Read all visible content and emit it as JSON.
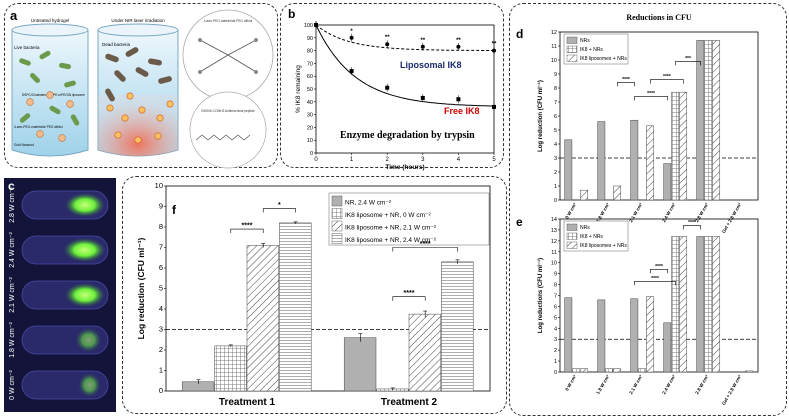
{
  "panel_a": {
    "letter": "a",
    "left_title": "Untreated hydrogel",
    "right_title": "Under NIR laser irradiation",
    "live_label": "Live bacteria",
    "dead_label": "Dead bacteria",
    "liposome_label": "DSPC/Cholesterol/DSPE-mPEG2k liposome",
    "nanorod_label": "Gold Nanorod",
    "peg_label": "4-arm-PEG-maleimide PEG dithiol",
    "peptide_label": "IIIKKIIK-CONH2 Antimicrobial peptide"
  },
  "panel_c": {
    "letter": "c",
    "tube_labels": [
      "2.8 W cm⁻²",
      "2.4 W cm⁻²",
      "2.1 W cm⁻²",
      "1.8 W cm⁻²",
      "0 W cm⁻²"
    ]
  },
  "colors": {
    "liposomal": "#1a2a6c",
    "free": "#cc0000",
    "bar_gray": "#b0b0b0",
    "fluor": "#7fff3a"
  },
  "chart_data": [
    {
      "id": "b",
      "type": "line",
      "letter": "b",
      "xlabel": "Time (hours)",
      "ylabel": "% IK8 remaining",
      "annotation": "Enzyme degradation by trypsin",
      "xlim": [
        0,
        5
      ],
      "ylim": [
        0,
        100
      ],
      "xticks": [
        0,
        1,
        2,
        3,
        4,
        5
      ],
      "yticks": [
        0,
        10,
        20,
        30,
        40,
        50,
        60,
        70,
        80,
        90,
        100
      ],
      "series": [
        {
          "name": "Liposomal IK8",
          "x": [
            0,
            1,
            2,
            3,
            4,
            5
          ],
          "y": [
            100,
            90,
            85,
            83,
            83,
            80
          ]
        },
        {
          "name": "Free IK8",
          "x": [
            0,
            1,
            2,
            3,
            4,
            5
          ],
          "y": [
            100,
            64,
            51,
            43,
            42,
            36
          ]
        }
      ],
      "significance": [
        {
          "x": 1,
          "label": "*"
        },
        {
          "x": 2,
          "label": "**"
        },
        {
          "x": 3,
          "label": "**"
        },
        {
          "x": 4,
          "label": "**"
        },
        {
          "x": 5,
          "label": "**"
        }
      ]
    },
    {
      "id": "d",
      "type": "bar",
      "letter": "d",
      "title": "Reductions in CFU",
      "ylabel": "Log reduction (CFU ml⁻¹)",
      "ylim": [
        0,
        12
      ],
      "yticks": [
        0,
        1,
        2,
        3,
        4,
        5,
        6,
        7,
        8,
        9,
        10,
        11,
        12
      ],
      "categories": [
        "0 W cm²",
        "1.8 W cm²",
        "2.1 W cm²",
        "2.4 W cm²",
        "2.8 W cm²",
        "Gel + 2.8 W cm²"
      ],
      "series": [
        {
          "name": "NRs",
          "values": [
            4.3,
            5.6,
            5.7,
            2.6,
            11.4,
            0
          ]
        },
        {
          "name": "IK8 + NRs",
          "values": [
            0,
            0,
            0,
            7.7,
            11.4,
            0
          ]
        },
        {
          "name": "IK8 liposomes + NRs",
          "values": [
            0.7,
            1.0,
            5.3,
            7.7,
            11.4,
            0
          ]
        }
      ],
      "threshold": 3,
      "significance": [
        "****",
        "****",
        "****",
        "***"
      ]
    },
    {
      "id": "e",
      "type": "bar",
      "letter": "e",
      "ylabel": "Log reductions (CFU ml⁻¹)",
      "ylim": [
        0,
        14
      ],
      "yticks": [
        0,
        1,
        2,
        3,
        4,
        5,
        6,
        7,
        8,
        9,
        10,
        11,
        12,
        13,
        14
      ],
      "categories": [
        "0 W cm²",
        "1.8 W cm²",
        "2.1 W cm²",
        "2.4 W cm²",
        "2.8 W cm²",
        "Gel + 2.8 W cm²"
      ],
      "series": [
        {
          "name": "NRs",
          "values": [
            6.8,
            6.6,
            6.7,
            4.5,
            12.4,
            0
          ]
        },
        {
          "name": "IK8 + NRs",
          "values": [
            0.3,
            0.3,
            0.3,
            12.4,
            12.4,
            0
          ]
        },
        {
          "name": "IK8 liposomes + NRs",
          "values": [
            0.3,
            0.3,
            6.9,
            12.4,
            12.4,
            0.1
          ]
        }
      ],
      "threshold": 3,
      "significance": [
        "****",
        "****",
        "****"
      ]
    },
    {
      "id": "f",
      "type": "bar",
      "letter": "f",
      "ylabel": "Log reduction (CFU ml⁻¹)",
      "ylim": [
        0,
        10
      ],
      "yticks": [
        0,
        1,
        2,
        3,
        4,
        5,
        6,
        7,
        8,
        9,
        10
      ],
      "categories": [
        "Treatment 1",
        "Treatment 2"
      ],
      "series": [
        {
          "name": "NR, 2.4 W cm⁻²",
          "values": [
            0.45,
            2.6
          ]
        },
        {
          "name": "IK8 liposome + NR, 0 W cm⁻²",
          "values": [
            2.2,
            0.1
          ]
        },
        {
          "name": "IK8 liposome + NR, 2.1 W cm⁻²",
          "values": [
            7.1,
            3.75
          ]
        },
        {
          "name": "IK8 liposome + NR, 2.4 W cm⁻²",
          "values": [
            8.2,
            6.3
          ]
        }
      ],
      "errors": [
        [
          0.1,
          0.2
        ],
        [
          0.05,
          0.05
        ],
        [
          0.1,
          0.15
        ],
        [
          0.05,
          0.1
        ]
      ],
      "threshold": 3,
      "significance": [
        "****",
        "*",
        "****",
        "****"
      ]
    }
  ]
}
